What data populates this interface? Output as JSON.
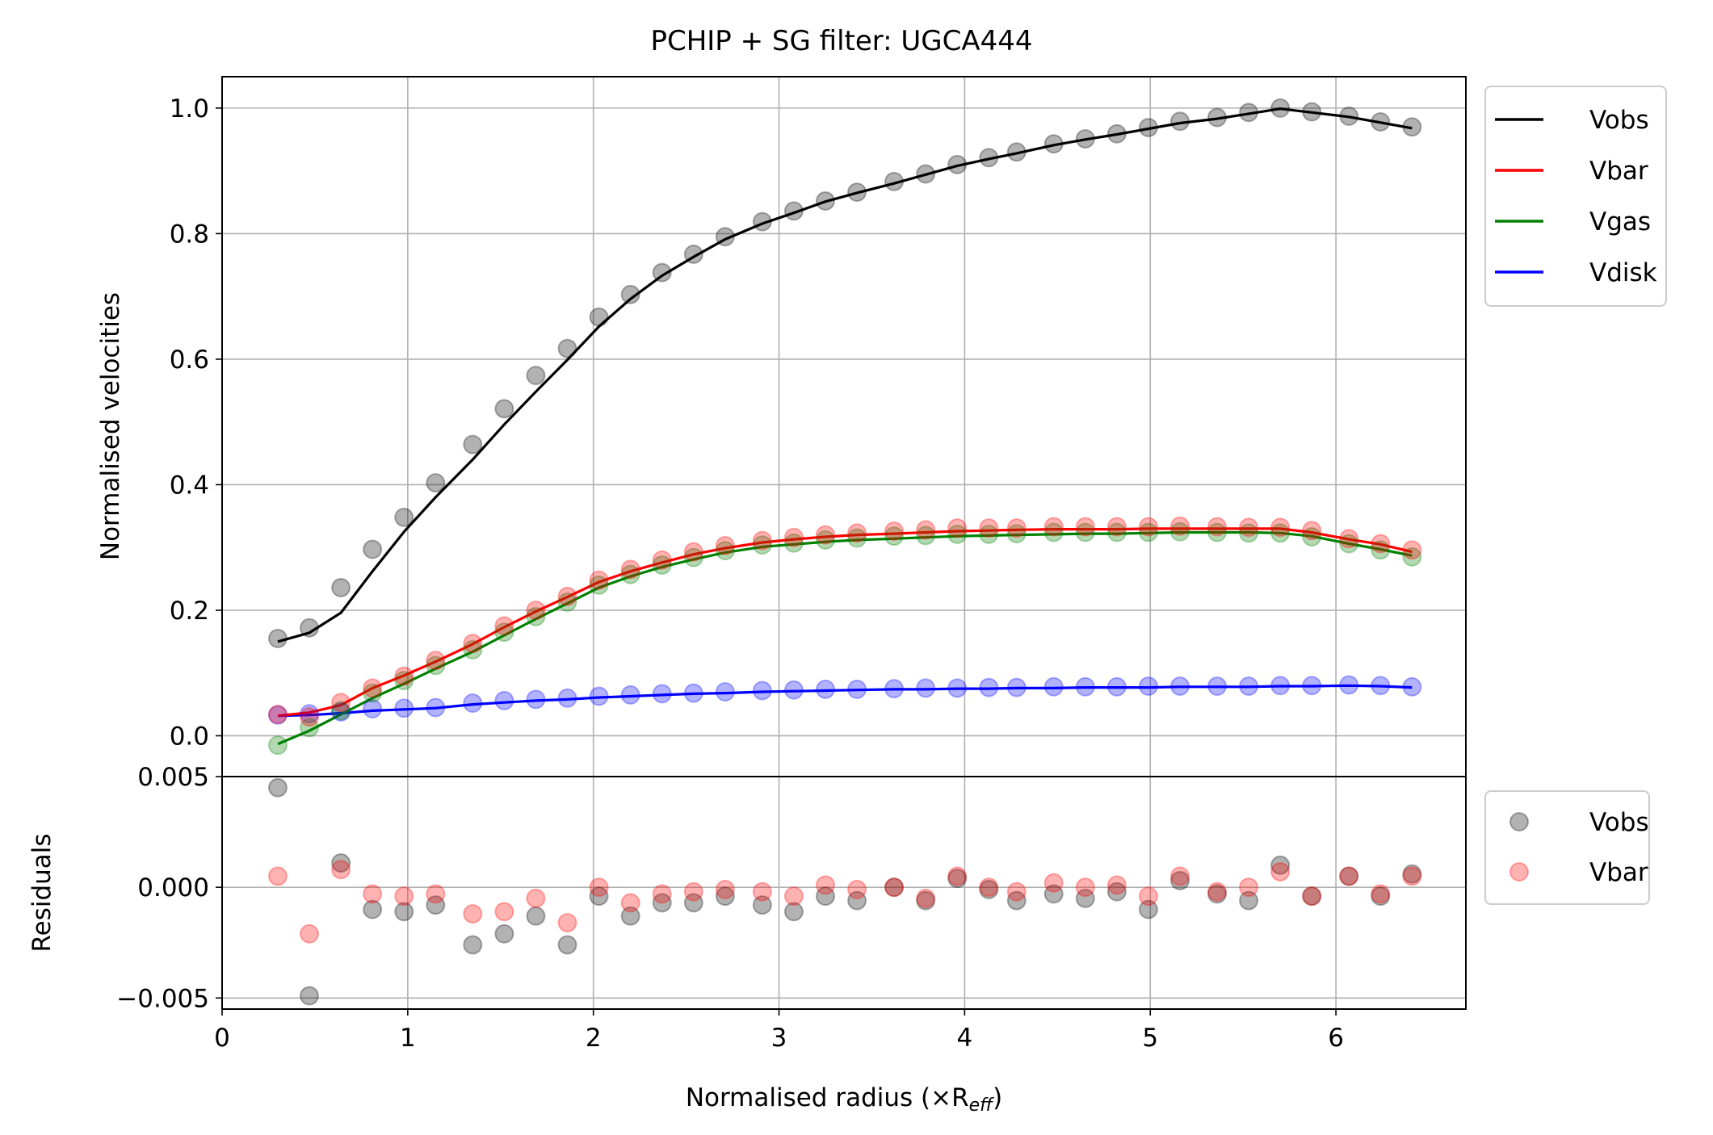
{
  "chart_data": [
    {
      "type": "line",
      "title": "PCHIP + SG filter: UGCA444",
      "ylabel": "Normalised velocities",
      "xlabel": "",
      "xlim": [
        0,
        6.7
      ],
      "ylim": [
        -0.065,
        1.05
      ],
      "xticks": [
        0,
        1,
        2,
        3,
        4,
        5,
        6
      ],
      "yticks": [
        0.0,
        0.2,
        0.4,
        0.6,
        0.8,
        1.0
      ],
      "ytick_labels": [
        "0.0",
        "0.2",
        "0.4",
        "0.6",
        "0.8",
        "1.0"
      ],
      "grid": true,
      "legend": "outside-top-right",
      "x": [
        0.3,
        0.47,
        0.64,
        0.81,
        0.98,
        1.15,
        1.35,
        1.52,
        1.69,
        1.86,
        2.03,
        2.2,
        2.37,
        2.54,
        2.71,
        2.91,
        3.08,
        3.25,
        3.42,
        3.62,
        3.79,
        3.96,
        4.13,
        4.28,
        4.48,
        4.65,
        4.82,
        4.99,
        5.16,
        5.36,
        5.53,
        5.7,
        5.87,
        6.07,
        6.24,
        6.41
      ],
      "series": [
        {
          "name": "Vobs",
          "color": "#000000",
          "points": [
            0.155,
            0.172,
            0.236,
            0.297,
            0.348,
            0.403,
            0.464,
            0.521,
            0.574,
            0.617,
            0.667,
            0.703,
            0.738,
            0.767,
            0.795,
            0.819,
            0.836,
            0.852,
            0.866,
            0.883,
            0.895,
            0.91,
            0.921,
            0.93,
            0.943,
            0.951,
            0.959,
            0.969,
            0.979,
            0.985,
            0.993,
            1.0,
            0.994,
            0.987,
            0.978,
            0.97
          ],
          "smooth": [
            0.15,
            0.164,
            0.196,
            0.262,
            0.325,
            0.38,
            0.44,
            0.496,
            0.548,
            0.599,
            0.652,
            0.696,
            0.733,
            0.763,
            0.791,
            0.816,
            0.833,
            0.851,
            0.865,
            0.88,
            0.894,
            0.908,
            0.919,
            0.928,
            0.941,
            0.95,
            0.958,
            0.967,
            0.976,
            0.983,
            0.991,
            0.999,
            0.993,
            0.986,
            0.977,
            0.968
          ]
        },
        {
          "name": "Vbar",
          "color": "#ff0000",
          "points": [
            0.034,
            0.03,
            0.053,
            0.076,
            0.095,
            0.12,
            0.147,
            0.175,
            0.2,
            0.222,
            0.248,
            0.265,
            0.28,
            0.293,
            0.303,
            0.311,
            0.316,
            0.32,
            0.323,
            0.326,
            0.328,
            0.331,
            0.331,
            0.331,
            0.333,
            0.333,
            0.333,
            0.333,
            0.334,
            0.333,
            0.332,
            0.332,
            0.327,
            0.314,
            0.306,
            0.296
          ],
          "smooth": [
            0.032,
            0.037,
            0.049,
            0.076,
            0.096,
            0.118,
            0.146,
            0.173,
            0.198,
            0.221,
            0.245,
            0.262,
            0.276,
            0.289,
            0.299,
            0.308,
            0.313,
            0.317,
            0.32,
            0.322,
            0.324,
            0.326,
            0.327,
            0.328,
            0.329,
            0.329,
            0.329,
            0.33,
            0.33,
            0.33,
            0.33,
            0.33,
            0.324,
            0.313,
            0.305,
            0.293
          ]
        },
        {
          "name": "Vgas",
          "color": "#008000",
          "points": [
            -0.015,
            0.013,
            0.04,
            0.068,
            0.088,
            0.112,
            0.137,
            0.165,
            0.19,
            0.213,
            0.24,
            0.257,
            0.272,
            0.284,
            0.295,
            0.304,
            0.307,
            0.312,
            0.315,
            0.318,
            0.319,
            0.321,
            0.321,
            0.322,
            0.324,
            0.324,
            0.324,
            0.324,
            0.325,
            0.324,
            0.323,
            0.323,
            0.317,
            0.306,
            0.296,
            0.285
          ],
          "smooth": [
            -0.013,
            0.008,
            0.034,
            0.06,
            0.083,
            0.107,
            0.134,
            0.16,
            0.186,
            0.211,
            0.236,
            0.254,
            0.269,
            0.281,
            0.292,
            0.301,
            0.305,
            0.309,
            0.312,
            0.314,
            0.316,
            0.318,
            0.319,
            0.32,
            0.321,
            0.322,
            0.322,
            0.323,
            0.324,
            0.324,
            0.324,
            0.323,
            0.318,
            0.306,
            0.297,
            0.287
          ]
        },
        {
          "name": "Vdisk",
          "color": "#0000ff",
          "points": [
            0.033,
            0.035,
            0.038,
            0.043,
            0.044,
            0.045,
            0.052,
            0.056,
            0.058,
            0.06,
            0.063,
            0.065,
            0.067,
            0.068,
            0.07,
            0.072,
            0.073,
            0.074,
            0.074,
            0.075,
            0.076,
            0.076,
            0.077,
            0.077,
            0.078,
            0.078,
            0.078,
            0.079,
            0.079,
            0.079,
            0.079,
            0.08,
            0.08,
            0.081,
            0.08,
            0.078
          ],
          "smooth": [
            0.032,
            0.033,
            0.036,
            0.04,
            0.042,
            0.044,
            0.05,
            0.053,
            0.056,
            0.058,
            0.061,
            0.063,
            0.065,
            0.067,
            0.068,
            0.07,
            0.071,
            0.072,
            0.073,
            0.074,
            0.074,
            0.075,
            0.075,
            0.076,
            0.076,
            0.077,
            0.077,
            0.077,
            0.078,
            0.078,
            0.078,
            0.079,
            0.079,
            0.08,
            0.079,
            0.077
          ]
        }
      ]
    },
    {
      "type": "scatter",
      "title": "",
      "ylabel": "Residuals",
      "xlabel": "Normalised radius (×R",
      "xlabel_sub": "eff",
      "xlabel_close": ")",
      "xlim": [
        0,
        6.7
      ],
      "ylim": [
        -0.0055,
        0.005
      ],
      "xticks": [
        0,
        1,
        2,
        3,
        4,
        5,
        6
      ],
      "xtick_labels": [
        "0",
        "1",
        "2",
        "3",
        "4",
        "5",
        "6"
      ],
      "yticks": [
        -0.005,
        0.0,
        0.005
      ],
      "ytick_labels": [
        "−0.005",
        "0.000",
        "0.005"
      ],
      "grid": true,
      "legend": "outside-top-right",
      "x": [
        0.3,
        0.47,
        0.64,
        0.81,
        0.98,
        1.15,
        1.35,
        1.52,
        1.69,
        1.86,
        2.03,
        2.2,
        2.37,
        2.54,
        2.71,
        2.91,
        3.08,
        3.25,
        3.42,
        3.62,
        3.79,
        3.96,
        4.13,
        4.28,
        4.48,
        4.65,
        4.82,
        4.99,
        5.16,
        5.36,
        5.53,
        5.7,
        5.87,
        6.07,
        6.24,
        6.41
      ],
      "series": [
        {
          "name": "Vobs",
          "color": "#000000",
          "values": [
            0.0045,
            -0.0049,
            0.0011,
            -0.001,
            -0.0011,
            -0.0008,
            -0.0026,
            -0.0021,
            -0.0013,
            -0.0026,
            -0.0004,
            -0.0013,
            -0.0007,
            -0.0007,
            -0.0004,
            -0.0008,
            -0.0011,
            -0.0004,
            -0.0006,
            0.0,
            -0.0006,
            0.0004,
            -0.0001,
            -0.0006,
            -0.0003,
            -0.0005,
            -0.0002,
            -0.001,
            0.0003,
            -0.0003,
            -0.0006,
            0.001,
            -0.0004,
            0.0005,
            -0.0004,
            0.0006
          ]
        },
        {
          "name": "Vbar",
          "color": "#ff0000",
          "values": [
            0.0005,
            -0.0021,
            0.0008,
            -0.0003,
            -0.0004,
            -0.0003,
            -0.0012,
            -0.0011,
            -0.0005,
            -0.0016,
            0.0,
            -0.0007,
            -0.0003,
            -0.0002,
            -0.0001,
            -0.0002,
            -0.0004,
            0.0001,
            -0.0001,
            0.0,
            -0.0005,
            0.0005,
            0.0,
            -0.0002,
            0.0002,
            0.0,
            0.0001,
            -0.0004,
            0.0005,
            -0.0002,
            0.0,
            0.0007,
            -0.0004,
            0.0005,
            -0.0003,
            0.0005
          ]
        }
      ]
    }
  ]
}
